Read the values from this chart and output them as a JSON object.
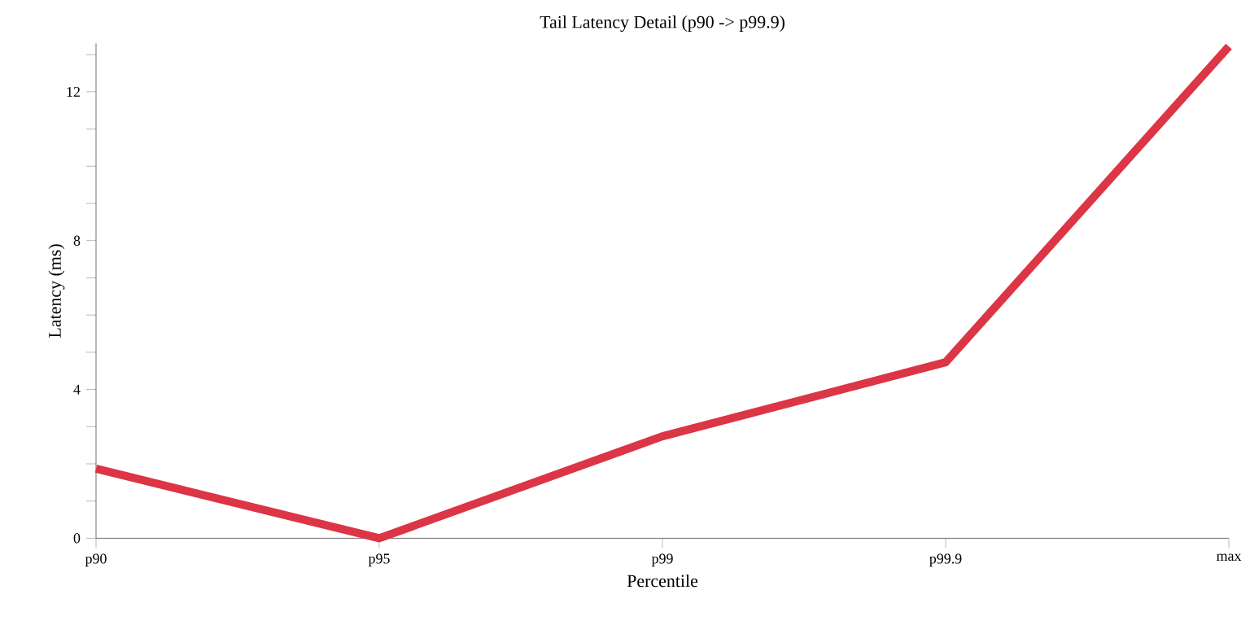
{
  "chart_data": {
    "type": "line",
    "title": "Tail Latency Detail (p90 -> p99.9)",
    "xlabel": "Percentile",
    "ylabel": "Latency (ms)",
    "categories": [
      "p90",
      "p95",
      "p99",
      "p99.9",
      "max"
    ],
    "series": [
      {
        "color": "#dc3545",
        "values": [
          1.87,
          0,
          2.74,
          4.73,
          13.22
        ]
      }
    ],
    "ylim": [
      0,
      13.3
    ],
    "yticks": [
      0,
      {
        "value": 1,
        "label": null
      },
      {
        "value": 2,
        "label": null
      },
      {
        "value": 3,
        "label": null
      },
      4,
      {
        "value": 5,
        "label": null
      },
      {
        "value": 6,
        "label": null
      },
      {
        "value": 7,
        "label": null
      },
      8,
      {
        "value": 9,
        "label": null
      },
      {
        "value": 10,
        "label": null
      },
      {
        "value": 11,
        "label": null
      },
      12,
      {
        "value": 13,
        "label": null
      }
    ],
    "marker": "none",
    "line_style": "solid"
  }
}
